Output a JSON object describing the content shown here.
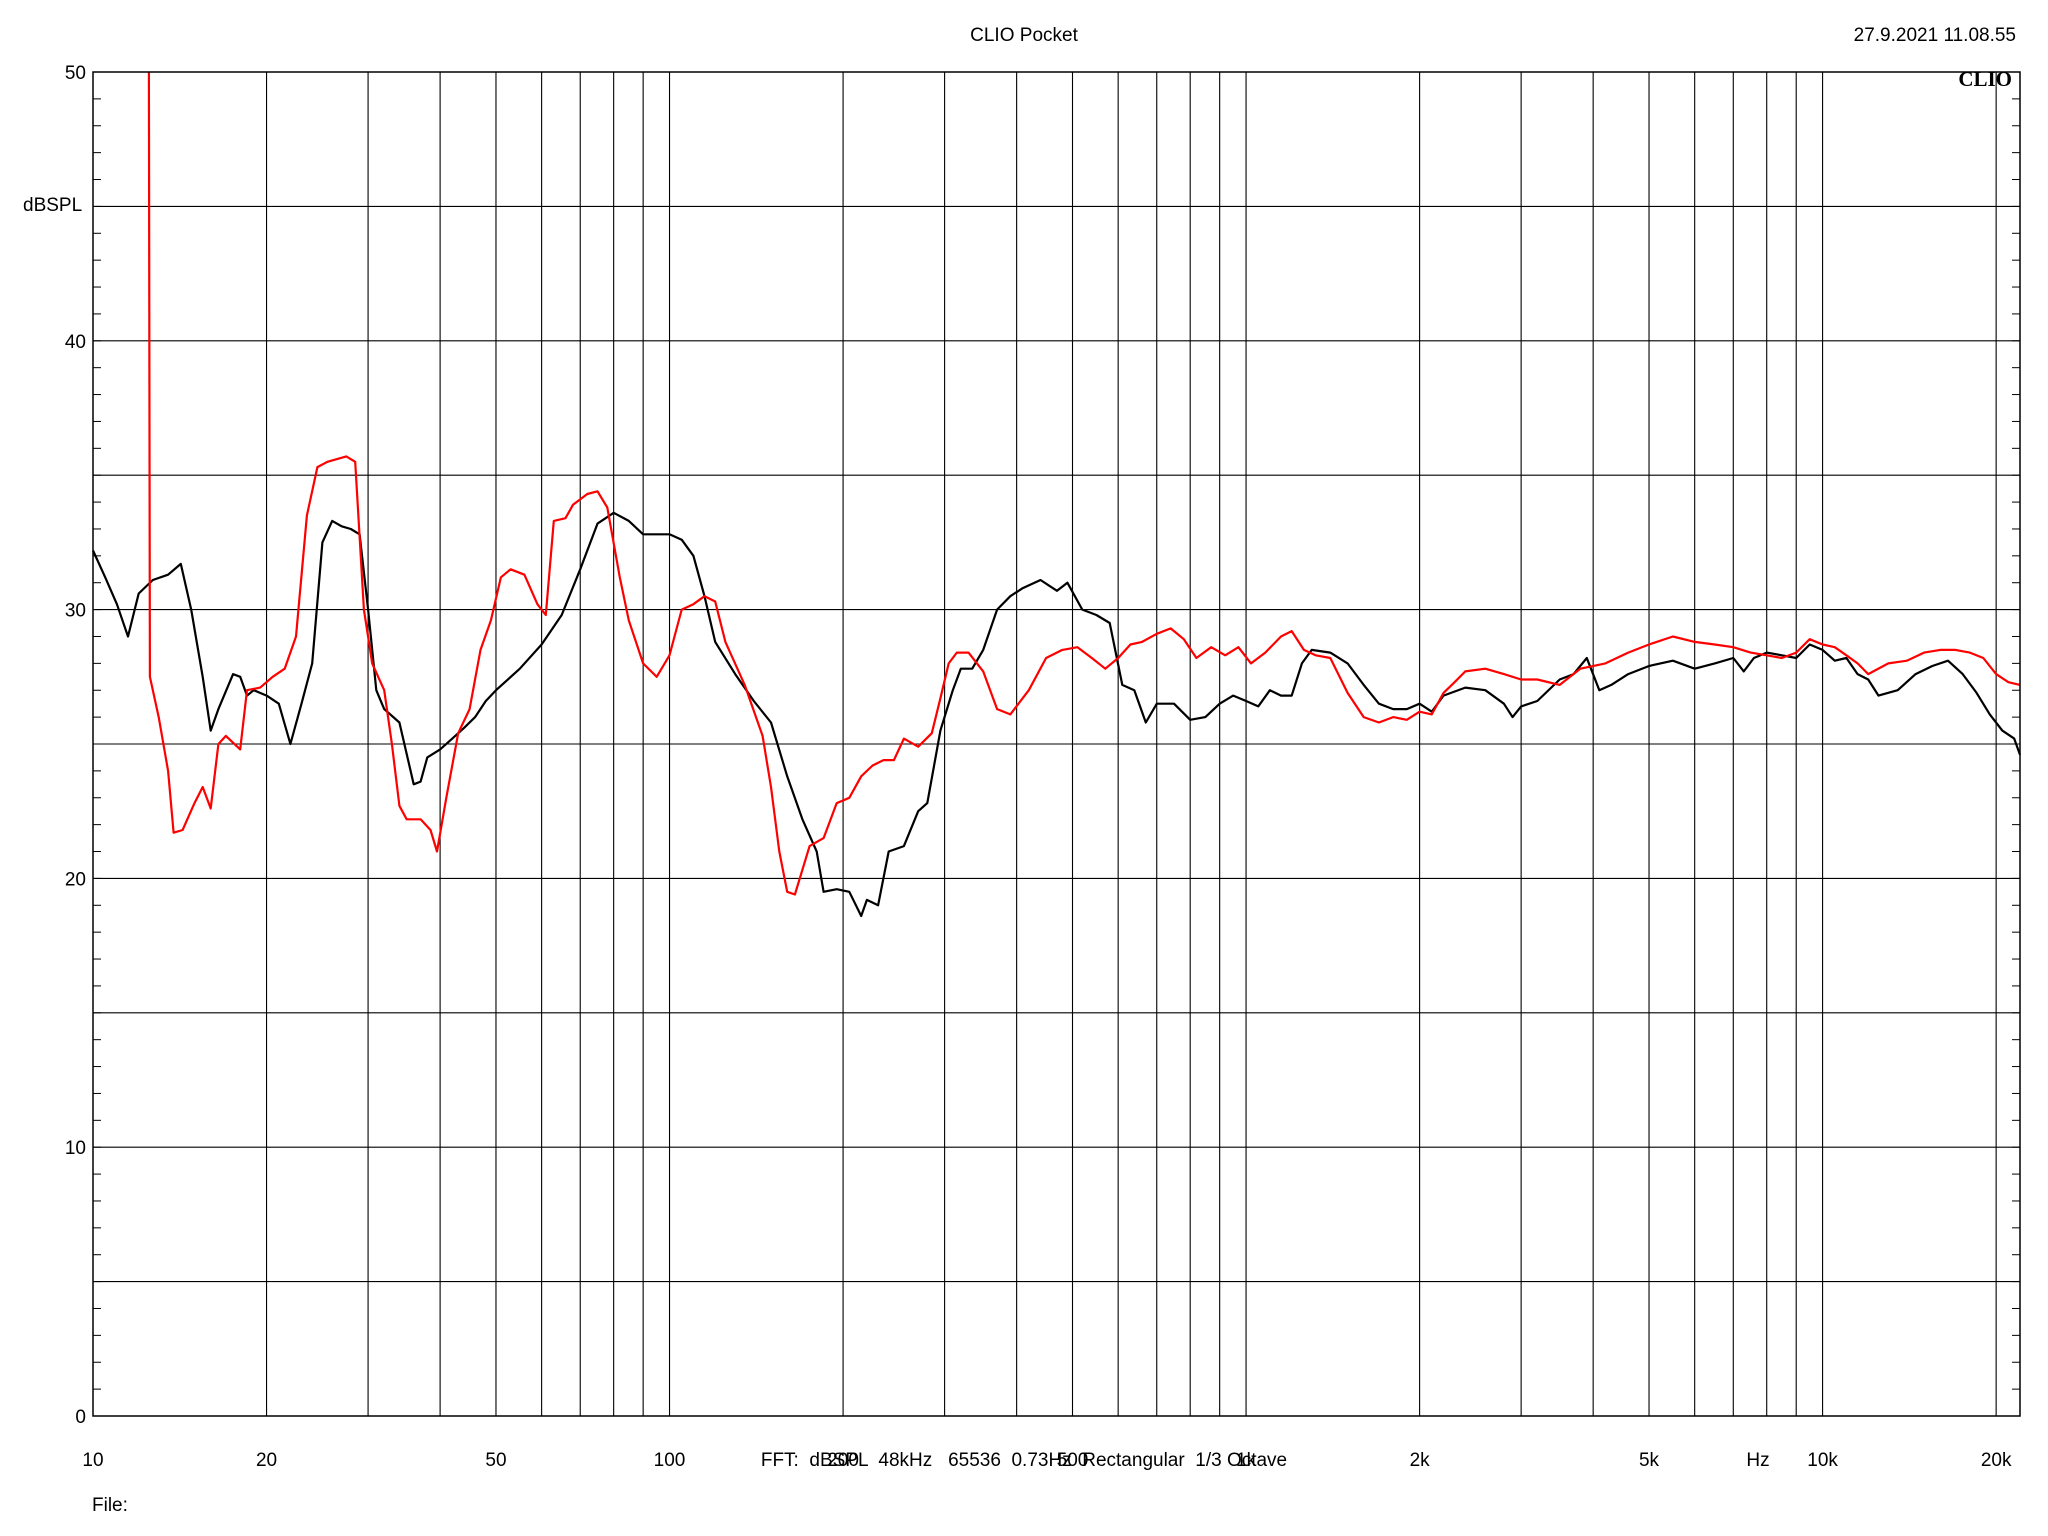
{
  "header": {
    "title": "CLIO Pocket",
    "timestamp": "27.9.2021 11.08.55",
    "logo": "CLIO"
  },
  "footer": {
    "settings": "FFT:  dBSPL  48kHz   65536  0.73Hz  Rectangular  1/3 Octave",
    "file_label": "File:"
  },
  "chart_data": {
    "type": "line",
    "title": "CLIO Pocket",
    "xlabel": "Hz",
    "ylabel": "dBSPL",
    "x_scale": "log",
    "xlim": [
      10,
      22000
    ],
    "ylim": [
      0,
      50
    ],
    "grid": true,
    "x_ticks": [
      {
        "value": 10,
        "label": "10"
      },
      {
        "value": 20,
        "label": "20"
      },
      {
        "value": 50,
        "label": "50"
      },
      {
        "value": 100,
        "label": "100"
      },
      {
        "value": 200,
        "label": "200"
      },
      {
        "value": 500,
        "label": "500"
      },
      {
        "value": 1000,
        "label": "1k"
      },
      {
        "value": 2000,
        "label": "2k"
      },
      {
        "value": 5000,
        "label": "5k"
      },
      {
        "value": 10000,
        "label": "10k"
      },
      {
        "value": 20000,
        "label": "20k"
      }
    ],
    "y_ticks": [
      {
        "value": 0,
        "label": "0"
      },
      {
        "value": 10,
        "label": "10"
      },
      {
        "value": 20,
        "label": "20"
      },
      {
        "value": 30,
        "label": "30"
      },
      {
        "value": 40,
        "label": "40"
      },
      {
        "value": 50,
        "label": "50"
      }
    ],
    "series": [
      {
        "color": "#000000",
        "points": [
          [
            10,
            32.2
          ],
          [
            10.5,
            31.2
          ],
          [
            11,
            30.2
          ],
          [
            11.5,
            29.0
          ],
          [
            12,
            30.6
          ],
          [
            12.7,
            31.1
          ],
          [
            13.5,
            31.3
          ],
          [
            14.2,
            31.7
          ],
          [
            14.8,
            30.0
          ],
          [
            15.5,
            27.5
          ],
          [
            16,
            25.5
          ],
          [
            16.5,
            26.3
          ],
          [
            17.5,
            27.6
          ],
          [
            18,
            27.5
          ],
          [
            18.5,
            26.8
          ],
          [
            19,
            27.0
          ],
          [
            20,
            26.8
          ],
          [
            21,
            26.5
          ],
          [
            22,
            25.0
          ],
          [
            23,
            26.5
          ],
          [
            24,
            28.0
          ],
          [
            25,
            32.5
          ],
          [
            26,
            33.3
          ],
          [
            27,
            33.1
          ],
          [
            28,
            33.0
          ],
          [
            29,
            32.8
          ],
          [
            30,
            30.0
          ],
          [
            31,
            27.0
          ],
          [
            32,
            26.3
          ],
          [
            34,
            25.8
          ],
          [
            36,
            23.5
          ],
          [
            37,
            23.6
          ],
          [
            38,
            24.5
          ],
          [
            40,
            24.8
          ],
          [
            42,
            25.2
          ],
          [
            44,
            25.6
          ],
          [
            46,
            26.0
          ],
          [
            48,
            26.6
          ],
          [
            50,
            27.0
          ],
          [
            55,
            27.8
          ],
          [
            60,
            28.7
          ],
          [
            65,
            29.8
          ],
          [
            70,
            31.5
          ],
          [
            75,
            33.2
          ],
          [
            80,
            33.6
          ],
          [
            85,
            33.3
          ],
          [
            90,
            32.8
          ],
          [
            95,
            32.8
          ],
          [
            100,
            32.8
          ],
          [
            105,
            32.6
          ],
          [
            110,
            32.0
          ],
          [
            115,
            30.5
          ],
          [
            120,
            28.8
          ],
          [
            130,
            27.6
          ],
          [
            140,
            26.6
          ],
          [
            150,
            25.8
          ],
          [
            160,
            23.8
          ],
          [
            170,
            22.2
          ],
          [
            180,
            21.0
          ],
          [
            185,
            19.5
          ],
          [
            195,
            19.6
          ],
          [
            205,
            19.5
          ],
          [
            215,
            18.6
          ],
          [
            220,
            19.2
          ],
          [
            230,
            19.0
          ],
          [
            240,
            21.0
          ],
          [
            255,
            21.2
          ],
          [
            270,
            22.5
          ],
          [
            280,
            22.8
          ],
          [
            295,
            25.5
          ],
          [
            310,
            27.0
          ],
          [
            320,
            27.8
          ],
          [
            335,
            27.8
          ],
          [
            350,
            28.5
          ],
          [
            370,
            30.0
          ],
          [
            390,
            30.5
          ],
          [
            410,
            30.8
          ],
          [
            440,
            31.1
          ],
          [
            470,
            30.7
          ],
          [
            490,
            31.0
          ],
          [
            520,
            30.0
          ],
          [
            550,
            29.8
          ],
          [
            580,
            29.5
          ],
          [
            610,
            27.2
          ],
          [
            640,
            27.0
          ],
          [
            670,
            25.8
          ],
          [
            700,
            26.5
          ],
          [
            750,
            26.5
          ],
          [
            800,
            25.9
          ],
          [
            850,
            26.0
          ],
          [
            900,
            26.5
          ],
          [
            950,
            26.8
          ],
          [
            1000,
            26.6
          ],
          [
            1050,
            26.4
          ],
          [
            1100,
            27.0
          ],
          [
            1150,
            26.8
          ],
          [
            1200,
            26.8
          ],
          [
            1250,
            28.0
          ],
          [
            1300,
            28.5
          ],
          [
            1400,
            28.4
          ],
          [
            1500,
            28.0
          ],
          [
            1600,
            27.2
          ],
          [
            1700,
            26.5
          ],
          [
            1800,
            26.3
          ],
          [
            1900,
            26.3
          ],
          [
            2000,
            26.5
          ],
          [
            2100,
            26.2
          ],
          [
            2200,
            26.8
          ],
          [
            2400,
            27.1
          ],
          [
            2600,
            27.0
          ],
          [
            2800,
            26.5
          ],
          [
            2900,
            26.0
          ],
          [
            3000,
            26.4
          ],
          [
            3200,
            26.6
          ],
          [
            3500,
            27.4
          ],
          [
            3700,
            27.6
          ],
          [
            3900,
            28.2
          ],
          [
            4100,
            27.0
          ],
          [
            4300,
            27.2
          ],
          [
            4600,
            27.6
          ],
          [
            5000,
            27.9
          ],
          [
            5500,
            28.1
          ],
          [
            6000,
            27.8
          ],
          [
            6500,
            28.0
          ],
          [
            7000,
            28.2
          ],
          [
            7300,
            27.7
          ],
          [
            7600,
            28.2
          ],
          [
            8000,
            28.4
          ],
          [
            8500,
            28.3
          ],
          [
            9000,
            28.2
          ],
          [
            9500,
            28.7
          ],
          [
            10000,
            28.5
          ],
          [
            10500,
            28.1
          ],
          [
            11000,
            28.2
          ],
          [
            11500,
            27.6
          ],
          [
            12000,
            27.4
          ],
          [
            12500,
            26.8
          ],
          [
            13500,
            27.0
          ],
          [
            14500,
            27.6
          ],
          [
            15500,
            27.9
          ],
          [
            16500,
            28.1
          ],
          [
            17500,
            27.6
          ],
          [
            18500,
            26.9
          ],
          [
            19500,
            26.1
          ],
          [
            20500,
            25.5
          ],
          [
            21500,
            25.2
          ],
          [
            22000,
            24.6
          ]
        ]
      },
      {
        "color": "#ff0000",
        "points": [
          [
            12.5,
            50.0
          ],
          [
            12.55,
            27.5
          ],
          [
            13,
            26.0
          ],
          [
            13.5,
            24.0
          ],
          [
            13.8,
            21.7
          ],
          [
            14.3,
            21.8
          ],
          [
            15,
            22.8
          ],
          [
            15.5,
            23.4
          ],
          [
            16,
            22.6
          ],
          [
            16.5,
            25.0
          ],
          [
            17,
            25.3
          ],
          [
            18,
            24.8
          ],
          [
            18.5,
            27.0
          ],
          [
            19.5,
            27.1
          ],
          [
            20.5,
            27.5
          ],
          [
            21.5,
            27.8
          ],
          [
            22.5,
            29.0
          ],
          [
            23.5,
            33.5
          ],
          [
            24.5,
            35.3
          ],
          [
            25.5,
            35.5
          ],
          [
            26.5,
            35.6
          ],
          [
            27.5,
            35.7
          ],
          [
            28.5,
            35.5
          ],
          [
            29.5,
            30.0
          ],
          [
            30.5,
            28.0
          ],
          [
            32,
            27.0
          ],
          [
            33,
            25.0
          ],
          [
            34,
            22.7
          ],
          [
            35,
            22.2
          ],
          [
            37,
            22.2
          ],
          [
            38.5,
            21.8
          ],
          [
            39.5,
            21.0
          ],
          [
            41,
            23.0
          ],
          [
            43,
            25.4
          ],
          [
            45,
            26.3
          ],
          [
            47,
            28.5
          ],
          [
            49,
            29.6
          ],
          [
            51,
            31.2
          ],
          [
            53,
            31.5
          ],
          [
            56,
            31.3
          ],
          [
            59,
            30.2
          ],
          [
            61,
            29.8
          ],
          [
            63,
            33.3
          ],
          [
            66,
            33.4
          ],
          [
            68,
            33.9
          ],
          [
            72,
            34.3
          ],
          [
            75,
            34.4
          ],
          [
            78,
            33.8
          ],
          [
            82,
            31.2
          ],
          [
            85,
            29.6
          ],
          [
            90,
            28.0
          ],
          [
            95,
            27.5
          ],
          [
            100,
            28.3
          ],
          [
            105,
            30.0
          ],
          [
            110,
            30.2
          ],
          [
            115,
            30.5
          ],
          [
            120,
            30.3
          ],
          [
            125,
            28.8
          ],
          [
            135,
            27.2
          ],
          [
            145,
            25.3
          ],
          [
            150,
            23.4
          ],
          [
            155,
            21.0
          ],
          [
            160,
            19.5
          ],
          [
            165,
            19.4
          ],
          [
            175,
            21.2
          ],
          [
            185,
            21.5
          ],
          [
            195,
            22.8
          ],
          [
            205,
            23.0
          ],
          [
            215,
            23.8
          ],
          [
            225,
            24.2
          ],
          [
            235,
            24.4
          ],
          [
            245,
            24.4
          ],
          [
            255,
            25.2
          ],
          [
            270,
            24.9
          ],
          [
            285,
            25.4
          ],
          [
            295,
            26.7
          ],
          [
            305,
            28.0
          ],
          [
            315,
            28.4
          ],
          [
            330,
            28.4
          ],
          [
            350,
            27.7
          ],
          [
            370,
            26.3
          ],
          [
            390,
            26.1
          ],
          [
            420,
            27.0
          ],
          [
            450,
            28.2
          ],
          [
            480,
            28.5
          ],
          [
            510,
            28.6
          ],
          [
            540,
            28.2
          ],
          [
            570,
            27.8
          ],
          [
            600,
            28.2
          ],
          [
            630,
            28.7
          ],
          [
            660,
            28.8
          ],
          [
            700,
            29.1
          ],
          [
            740,
            29.3
          ],
          [
            780,
            28.9
          ],
          [
            820,
            28.2
          ],
          [
            870,
            28.6
          ],
          [
            920,
            28.3
          ],
          [
            970,
            28.6
          ],
          [
            1020,
            28.0
          ],
          [
            1080,
            28.4
          ],
          [
            1150,
            29.0
          ],
          [
            1200,
            29.2
          ],
          [
            1260,
            28.5
          ],
          [
            1320,
            28.3
          ],
          [
            1400,
            28.2
          ],
          [
            1500,
            26.9
          ],
          [
            1600,
            26.0
          ],
          [
            1700,
            25.8
          ],
          [
            1800,
            26.0
          ],
          [
            1900,
            25.9
          ],
          [
            2000,
            26.2
          ],
          [
            2100,
            26.1
          ],
          [
            2200,
            26.9
          ],
          [
            2300,
            27.3
          ],
          [
            2400,
            27.7
          ],
          [
            2600,
            27.8
          ],
          [
            2800,
            27.6
          ],
          [
            3000,
            27.4
          ],
          [
            3200,
            27.4
          ],
          [
            3500,
            27.2
          ],
          [
            3800,
            27.8
          ],
          [
            4200,
            28.0
          ],
          [
            4600,
            28.4
          ],
          [
            5000,
            28.7
          ],
          [
            5500,
            29.0
          ],
          [
            6000,
            28.8
          ],
          [
            6500,
            28.7
          ],
          [
            7000,
            28.6
          ],
          [
            7500,
            28.4
          ],
          [
            8000,
            28.3
          ],
          [
            8500,
            28.2
          ],
          [
            9000,
            28.4
          ],
          [
            9500,
            28.9
          ],
          [
            10000,
            28.7
          ],
          [
            10500,
            28.6
          ],
          [
            11000,
            28.3
          ],
          [
            11500,
            28.0
          ],
          [
            12000,
            27.6
          ],
          [
            13000,
            28.0
          ],
          [
            14000,
            28.1
          ],
          [
            15000,
            28.4
          ],
          [
            16000,
            28.5
          ],
          [
            17000,
            28.5
          ],
          [
            18000,
            28.4
          ],
          [
            19000,
            28.2
          ],
          [
            20000,
            27.6
          ],
          [
            21000,
            27.3
          ],
          [
            22000,
            27.2
          ]
        ]
      }
    ]
  }
}
